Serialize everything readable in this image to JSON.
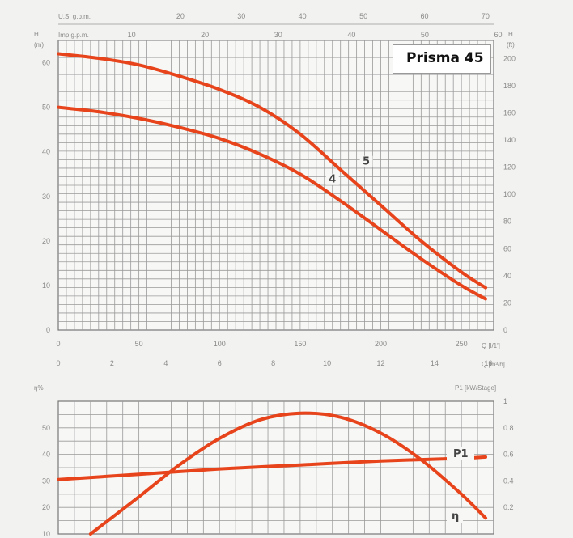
{
  "title_box": "Prisma 45",
  "colors": {
    "curve": "#e8441c",
    "grid": "#9a9a9a",
    "text": "#8a8a8a"
  },
  "top_axis_labels": {
    "us_gpm": "U.S. g.p.m.",
    "imp_gpm": "Imp g.p.m.",
    "h_m_left": "H\n(m)",
    "h_ft_right": "H\n(ft)",
    "q_ls": "Q [l/1']",
    "q_m3h": "Q [m³/h]",
    "eta": "η%",
    "p1": "P1 [kW/Stage]"
  },
  "chart_data": [
    {
      "type": "line",
      "xlabel": "Q [l/1']",
      "ylabel": "H (m)",
      "xlim": [
        0,
        270
      ],
      "ylim": [
        0,
        65
      ],
      "x_ticks": [
        "0",
        "50",
        "100",
        "150",
        "200",
        "250"
      ],
      "y_ticks": [
        "0",
        "10",
        "20",
        "30",
        "40",
        "50",
        "60"
      ],
      "secondary_x_m3h_ticks": [
        "0",
        "2",
        "4",
        "6",
        "8",
        "10",
        "12",
        "14",
        "16"
      ],
      "secondary_y_ft_ticks": [
        "0",
        "20",
        "40",
        "60",
        "80",
        "100",
        "120",
        "140",
        "160",
        "180",
        "200"
      ],
      "top_usgpm_ticks": [
        "20",
        "30",
        "40",
        "50",
        "60",
        "70"
      ],
      "top_impgpm_ticks": [
        "10",
        "20",
        "30",
        "40",
        "50",
        "60"
      ],
      "series": [
        {
          "name": "5",
          "x": [
            0,
            25,
            50,
            75,
            100,
            125,
            150,
            175,
            200,
            225,
            250,
            265
          ],
          "y": [
            62,
            61,
            59.5,
            57,
            54,
            50,
            44,
            36,
            28,
            20,
            13,
            9.5
          ]
        },
        {
          "name": "4",
          "x": [
            0,
            25,
            50,
            75,
            100,
            125,
            150,
            175,
            200,
            225,
            250,
            265
          ],
          "y": [
            50,
            49,
            47.5,
            45.5,
            43,
            39.5,
            35,
            29,
            22.5,
            16,
            10,
            7
          ]
        }
      ]
    },
    {
      "type": "line",
      "ylabel": "η%",
      "y2label": "P1 [kW/Stage]",
      "ylim": [
        10,
        60
      ],
      "y2lim": [
        0,
        1
      ],
      "y_ticks": [
        "10",
        "20",
        "30",
        "40",
        "50"
      ],
      "y2_ticks": [
        "0.2",
        "0.4",
        "0.6",
        "0.8",
        "1"
      ],
      "series": [
        {
          "name": "η",
          "x": [
            20,
            50,
            75,
            100,
            125,
            150,
            175,
            200,
            225,
            250,
            265
          ],
          "y": [
            10,
            24,
            36,
            46,
            53,
            55.5,
            54,
            48,
            38,
            25,
            16
          ]
        },
        {
          "name": "P1",
          "axis": "right",
          "x": [
            0,
            50,
            100,
            150,
            200,
            250,
            265
          ],
          "y": [
            0.41,
            0.45,
            0.49,
            0.52,
            0.55,
            0.57,
            0.58
          ]
        }
      ]
    }
  ]
}
